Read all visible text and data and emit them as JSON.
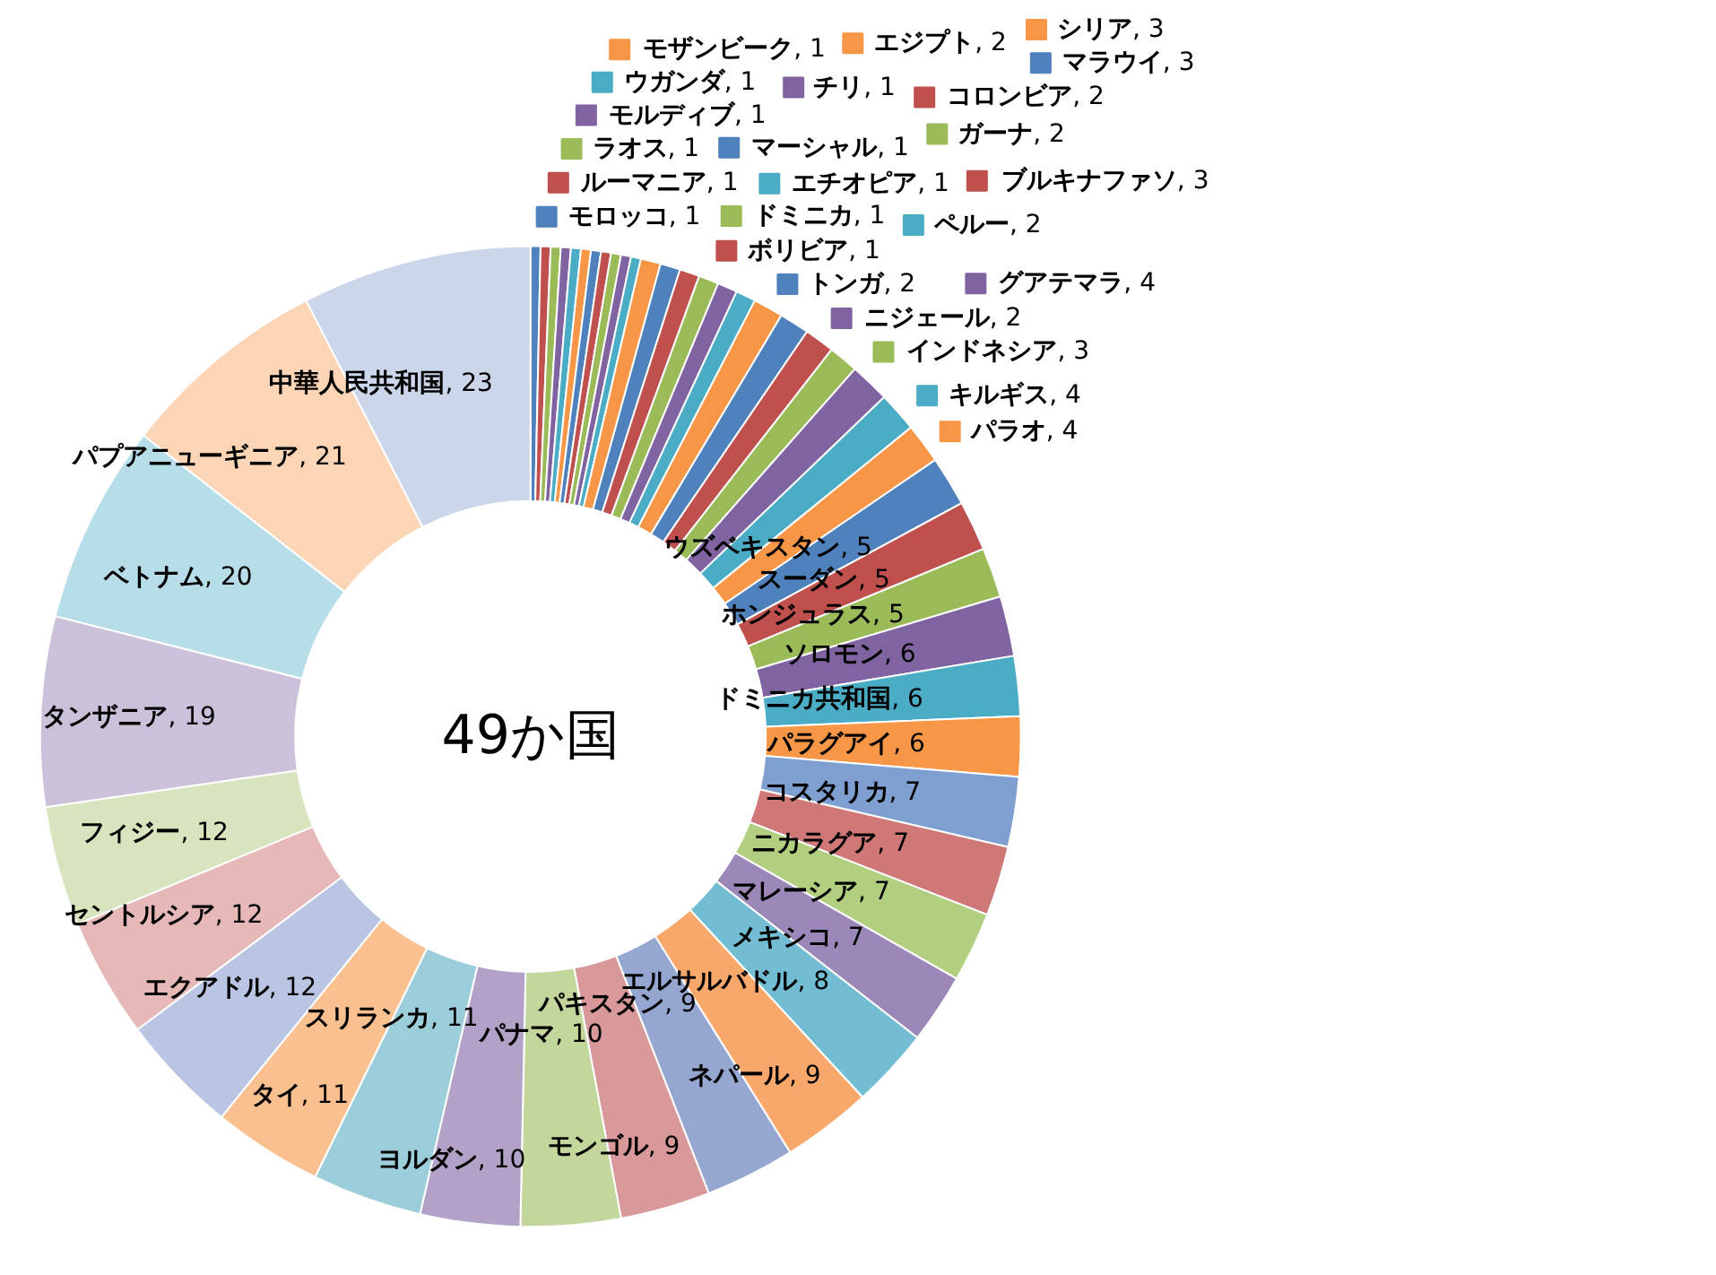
{
  "chart_data": {
    "type": "donut",
    "categories": [
      "モロッコ",
      "ルーマニア",
      "ラオス",
      "モルディブ",
      "ウガンダ",
      "モザンビーク",
      "マーシャル",
      "ボリビア",
      "ドミニカ",
      "チリ",
      "エチオピア",
      "エジプト",
      "トンガ",
      "コロンビア",
      "ガーナ",
      "ニジェール",
      "ペルー",
      "シリア",
      "マラウイ",
      "ブルキナファソ",
      "インドネシア",
      "グアテマラ",
      "キルギス",
      "パラオ",
      "ウズベキスタン",
      "スーダン",
      "ホンジュラス",
      "ソロモン",
      "ドミニカ共和国",
      "パラグアイ",
      "コスタリカ",
      "ニカラグア",
      "マレーシア",
      "メキシコ",
      "エルサルバドル",
      "ネパール",
      "パキスタン",
      "モンゴル",
      "パナマ",
      "ヨルダン",
      "スリランカ",
      "タイ",
      "エクアドル",
      "セントルシア",
      "フィジー",
      "タンザニア",
      "ベトナム",
      "パプアニューギニア",
      "中華人民共和国"
    ],
    "values": [
      1,
      1,
      1,
      1,
      1,
      1,
      1,
      1,
      1,
      1,
      1,
      2,
      2,
      2,
      2,
      2,
      2,
      3,
      3,
      3,
      3,
      4,
      4,
      4,
      5,
      5,
      5,
      6,
      6,
      6,
      7,
      7,
      7,
      7,
      8,
      9,
      9,
      9,
      10,
      10,
      11,
      11,
      12,
      12,
      12,
      19,
      20,
      21,
      23
    ],
    "colors": [
      "#4f81bd",
      "#c0504d",
      "#9bbb59",
      "#8064a2",
      "#4bacc6",
      "#f79646",
      "#4f81bd",
      "#c0504d",
      "#9bbb59",
      "#8064a2",
      "#4bacc6",
      "#f79646",
      "#4f81bd",
      "#c0504d",
      "#9bbb59",
      "#8064a2",
      "#4bacc6",
      "#f79646",
      "#4f81bd",
      "#c0504d",
      "#9bbb59",
      "#8064a2",
      "#4bacc6",
      "#f79646",
      "#4f81bd",
      "#c0504d",
      "#9bbb59",
      "#8064a2",
      "#4bacc6",
      "#f79646",
      "#7f9fd0",
      "#d07878",
      "#b2cf80",
      "#9b88b8",
      "#72bcd4",
      "#f9a86b",
      "#95a7d0",
      "#d9989a",
      "#c3d69b",
      "#b3a2c7",
      "#9bcdda",
      "#fac090",
      "#b9c5e3",
      "#e6b9b8",
      "#d7e4bd",
      "#ccc1da",
      "#b7dee8",
      "#fbd5b5",
      "#ccd6ea"
    ],
    "value_labels": [
      ", 1",
      ", 1",
      ", 1",
      ", 1",
      ", 1",
      ", 1",
      ", 1",
      ", 1",
      ", 1",
      ", 1",
      ", 1",
      ", 2",
      ", 2",
      ", 2",
      ", 2",
      ", 2",
      ", 2",
      ", 3",
      ", 3",
      ", 3",
      ", 3",
      ", 4",
      ", 4",
      ", 4",
      ", 5",
      ", 5",
      ", 5",
      ", 6",
      ", 6",
      ", 6",
      ", 7",
      ", 7",
      ", 7",
      ", 7",
      ", 8",
      ", 9",
      ", 9",
      ", 9",
      ", 10",
      ", 10",
      ", 11",
      ", 11",
      ", 12",
      ", 12",
      ", 12",
      ", 19",
      ", 20",
      ", 21",
      ", 23"
    ],
    "legend": "top right",
    "annotations": [
      "49か国"
    ]
  }
}
